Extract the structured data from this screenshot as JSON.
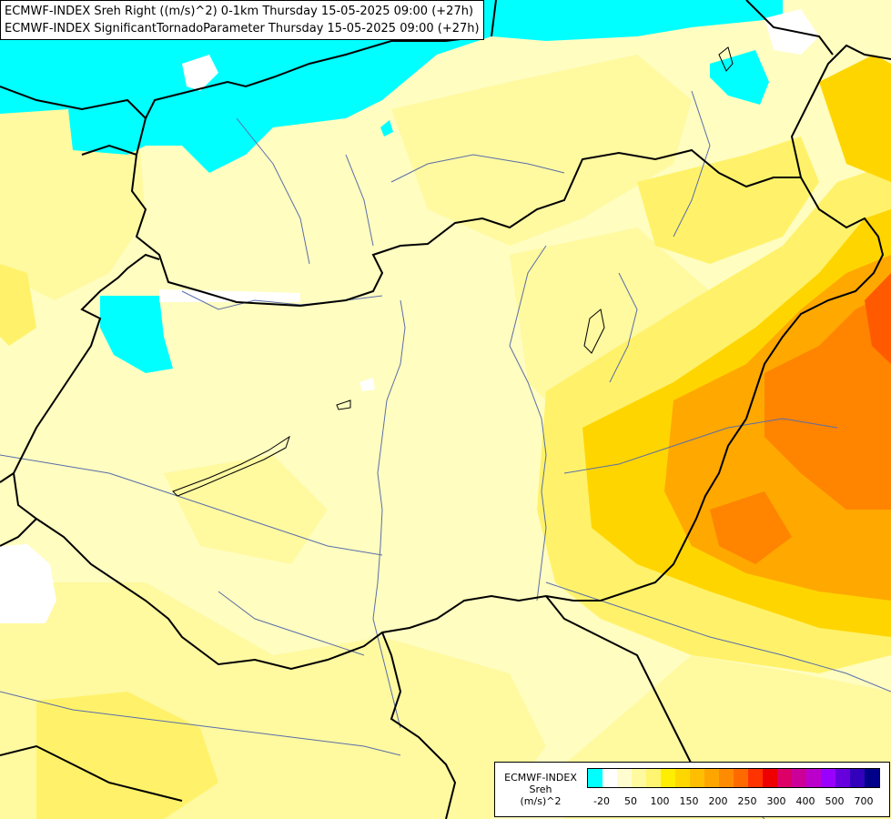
{
  "title": {
    "line1": "ECMWF-INDEX Sreh Right ((m/s)^2) 0-1km Thursday 15-05-2025 09:00 (+27h)",
    "line2": "ECMWF-INDEX SignificantTornadoParameter Thursday 15-05-2025 09:00 (+27h)"
  },
  "legend": {
    "title_line1": "ECMWF-INDEX",
    "title_line2": "Sreh",
    "title_line3": "(m/s)^2",
    "swatch_colors": [
      "#00ffff",
      "#ffffff",
      "#fffdd0",
      "#fffaa0",
      "#fff570",
      "#ffee00",
      "#ffd700",
      "#ffbf00",
      "#ffa500",
      "#ff8c00",
      "#ff6a00",
      "#ff3300",
      "#ee0000",
      "#dd0066",
      "#cc0099",
      "#bb00cc",
      "#9900ff",
      "#6600dd",
      "#3300bb",
      "#000088"
    ],
    "tick_labels": [
      "-20",
      "50",
      "100",
      "150",
      "200",
      "250",
      "300",
      "400",
      "500",
      "700"
    ]
  },
  "colors": {
    "background": "#fffdc0",
    "cyan": "#00ffff",
    "white": "#ffffff",
    "light_yellow": "#ffffa8",
    "yellow": "#fff07a",
    "gold": "#ffd700",
    "orange": "#ffa000",
    "deep_orange": "#ff7a00",
    "red_orange": "#ff5000",
    "border": "#000000",
    "river": "#5a6ea8"
  }
}
